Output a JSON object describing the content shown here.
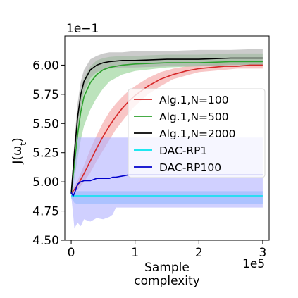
{
  "chart_data": {
    "type": "line",
    "xlabel": "Sample\ncomplexity",
    "ylabel": "J(ω_t)",
    "x_offset_label": "1e5",
    "y_offset_label": "1e−1",
    "xlim": [
      -0.1,
      3.1
    ],
    "ylim": [
      4.5,
      6.25
    ],
    "x_ticks": [
      0,
      1,
      2,
      3
    ],
    "y_ticks": [
      4.5,
      4.75,
      5.0,
      5.25,
      5.5,
      5.75,
      6.0
    ],
    "y_tick_labels": [
      "4.50",
      "4.75",
      "5.00",
      "5.25",
      "5.50",
      "5.75",
      "6.00"
    ],
    "grid": false,
    "legend_position": "center-right",
    "series": [
      {
        "name": "Alg.1,N=100",
        "color": "#d62728",
        "band_color": "#f4a0a0",
        "x": [
          0,
          0.1,
          0.2,
          0.3,
          0.4,
          0.5,
          0.6,
          0.7,
          0.8,
          0.9,
          1.0,
          1.2,
          1.4,
          1.6,
          1.8,
          2.0,
          2.2,
          2.4,
          2.6,
          2.8,
          3.0
        ],
        "y": [
          4.9,
          4.97,
          5.07,
          5.18,
          5.29,
          5.39,
          5.48,
          5.56,
          5.63,
          5.69,
          5.74,
          5.82,
          5.88,
          5.92,
          5.95,
          5.97,
          5.98,
          5.99,
          5.99,
          6.0,
          6.0
        ],
        "lower": [
          4.88,
          4.93,
          5.0,
          5.08,
          5.18,
          5.27,
          5.36,
          5.45,
          5.52,
          5.59,
          5.65,
          5.75,
          5.82,
          5.88,
          5.91,
          5.94,
          5.95,
          5.96,
          5.97,
          5.97,
          5.97
        ],
        "upper": [
          4.92,
          5.01,
          5.14,
          5.28,
          5.4,
          5.51,
          5.6,
          5.67,
          5.73,
          5.78,
          5.82,
          5.89,
          5.94,
          5.97,
          5.99,
          6.0,
          6.01,
          6.02,
          6.02,
          6.02,
          6.02
        ]
      },
      {
        "name": "Alg.1,N=500",
        "color": "#2ca02c",
        "band_color": "#8fd18f",
        "x": [
          0,
          0.05,
          0.1,
          0.15,
          0.2,
          0.3,
          0.4,
          0.5,
          0.6,
          0.8,
          1.0,
          1.5,
          2.0,
          2.5,
          3.0
        ],
        "y": [
          4.9,
          5.15,
          5.4,
          5.6,
          5.73,
          5.85,
          5.92,
          5.96,
          5.98,
          6.0,
          6.01,
          6.02,
          6.02,
          6.03,
          6.03
        ],
        "lower": [
          4.88,
          5.02,
          5.2,
          5.36,
          5.48,
          5.62,
          5.72,
          5.8,
          5.86,
          5.92,
          5.95,
          5.98,
          5.99,
          6.0,
          6.0
        ],
        "upper": [
          4.92,
          5.28,
          5.58,
          5.78,
          5.89,
          5.99,
          6.04,
          6.06,
          6.07,
          6.08,
          6.08,
          6.09,
          6.09,
          6.1,
          6.1
        ]
      },
      {
        "name": "Alg.1,N=2000",
        "color": "#000000",
        "band_color": "#a8a8a8",
        "x": [
          0,
          0.05,
          0.1,
          0.15,
          0.2,
          0.3,
          0.4,
          0.5,
          0.6,
          0.8,
          1.0,
          1.5,
          2.0,
          2.5,
          3.0
        ],
        "y": [
          4.9,
          5.25,
          5.55,
          5.75,
          5.86,
          5.96,
          6.0,
          6.02,
          6.03,
          6.04,
          6.04,
          6.05,
          6.05,
          6.06,
          6.06
        ],
        "lower": [
          4.88,
          5.15,
          5.43,
          5.64,
          5.77,
          5.89,
          5.94,
          5.96,
          5.97,
          5.98,
          5.98,
          5.99,
          5.99,
          6.0,
          6.0
        ],
        "upper": [
          4.92,
          5.35,
          5.67,
          5.86,
          5.96,
          6.05,
          6.08,
          6.1,
          6.11,
          6.11,
          6.12,
          6.12,
          6.13,
          6.13,
          6.14
        ]
      },
      {
        "name": "DAC-RP1",
        "color": "#00e5ee",
        "band_color": "#69c3ff",
        "x": [
          0,
          0.05,
          0.1,
          0.3,
          0.6,
          1.0,
          1.5,
          2.0,
          2.5,
          3.0
        ],
        "y": [
          4.88,
          4.88,
          4.88,
          4.88,
          4.88,
          4.88,
          4.88,
          4.88,
          4.88,
          4.88
        ],
        "lower": [
          4.86,
          4.82,
          4.81,
          4.81,
          4.81,
          4.81,
          4.81,
          4.81,
          4.81,
          4.81
        ],
        "upper": [
          4.9,
          4.92,
          4.92,
          4.92,
          4.92,
          4.92,
          4.92,
          4.92,
          4.92,
          4.92
        ]
      },
      {
        "name": "DAC-RP100",
        "color": "#0000cc",
        "band_color": "#b0b0ff",
        "x": [
          0,
          0.03,
          0.05,
          0.1,
          0.15,
          0.2,
          0.3,
          0.4,
          0.5,
          0.6,
          0.65,
          0.7,
          0.8,
          0.9,
          1.0,
          1.5,
          2.0,
          2.5,
          3.0
        ],
        "y": [
          4.91,
          4.88,
          4.9,
          4.98,
          5.0,
          5.01,
          5.01,
          5.03,
          5.03,
          5.03,
          5.04,
          5.04,
          5.05,
          5.06,
          5.06,
          5.06,
          5.06,
          5.06,
          5.06
        ],
        "lower": [
          4.88,
          4.72,
          4.6,
          4.65,
          4.62,
          4.68,
          4.66,
          4.69,
          4.68,
          4.7,
          4.72,
          4.78,
          4.78,
          4.78,
          4.78,
          4.78,
          4.78,
          4.78,
          4.78
        ],
        "upper": [
          4.94,
          5.05,
          5.15,
          5.38,
          5.38,
          5.38,
          5.38,
          5.38,
          5.38,
          5.38,
          5.38,
          5.38,
          5.38,
          5.38,
          5.38,
          5.38,
          5.38,
          5.38,
          5.38
        ]
      }
    ]
  }
}
